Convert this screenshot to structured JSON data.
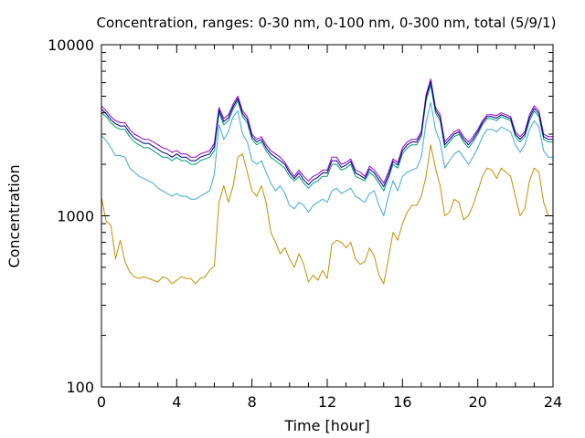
{
  "chart_data": {
    "type": "line",
    "title": "Concentration, ranges: 0-30 nm, 0-100 nm, 0-300 nm, total (5/9/1)",
    "xlabel": "Time [hour]",
    "ylabel": "Concentration",
    "xlim": [
      0,
      24
    ],
    "ylim": [
      100,
      10000
    ],
    "yscale": "log",
    "grid": false,
    "legend": "none",
    "x_ticks": [
      {
        "value": 0,
        "label": "0"
      },
      {
        "value": 4,
        "label": "4"
      },
      {
        "value": 8,
        "label": "8"
      },
      {
        "value": 12,
        "label": "12"
      },
      {
        "value": 16,
        "label": "16"
      },
      {
        "value": 20,
        "label": "20"
      },
      {
        "value": 24,
        "label": "24"
      }
    ],
    "y_ticks": [
      {
        "value": 100,
        "label": "100"
      },
      {
        "value": 1000,
        "label": "1000"
      },
      {
        "value": 10000,
        "label": "10000"
      }
    ],
    "x": [
      0,
      0.25,
      0.5,
      0.75,
      1,
      1.25,
      1.5,
      1.75,
      2,
      2.25,
      2.5,
      2.75,
      3,
      3.25,
      3.5,
      3.75,
      4,
      4.25,
      4.5,
      4.75,
      5,
      5.25,
      5.5,
      5.75,
      6,
      6.25,
      6.5,
      6.75,
      7,
      7.25,
      7.5,
      7.75,
      8,
      8.25,
      8.5,
      8.75,
      9,
      9.25,
      9.5,
      9.75,
      10,
      10.25,
      10.5,
      10.75,
      11,
      11.25,
      11.5,
      11.75,
      12,
      12.25,
      12.5,
      12.75,
      13,
      13.25,
      13.5,
      13.75,
      14,
      14.25,
      14.5,
      14.75,
      15,
      15.25,
      15.5,
      15.75,
      16,
      16.25,
      16.5,
      16.75,
      17,
      17.25,
      17.5,
      17.75,
      18,
      18.25,
      18.5,
      18.75,
      19,
      19.25,
      19.5,
      19.75,
      20,
      20.25,
      20.5,
      20.75,
      21,
      21.25,
      21.5,
      21.75,
      22,
      22.25,
      22.5,
      22.75,
      23,
      23.25,
      23.5,
      23.75,
      24
    ],
    "series": [
      {
        "color": "#c29000",
        "values": [
          1280,
          930,
          880,
          560,
          720,
          540,
          470,
          440,
          430,
          440,
          430,
          420,
          410,
          440,
          430,
          400,
          420,
          440,
          430,
          430,
          400,
          430,
          440,
          480,
          510,
          1200,
          1500,
          1200,
          1500,
          2200,
          2300,
          1800,
          1400,
          1300,
          1500,
          1200,
          800,
          700,
          600,
          650,
          560,
          500,
          600,
          520,
          410,
          450,
          420,
          480,
          430,
          680,
          720,
          700,
          650,
          700,
          560,
          520,
          540,
          650,
          580,
          450,
          400,
          560,
          800,
          720,
          900,
          1050,
          1150,
          1150,
          1300,
          1700,
          2600,
          1900,
          1500,
          1000,
          1050,
          1250,
          1200,
          950,
          1000,
          1150,
          1400,
          1700,
          1900,
          1850,
          1650,
          1900,
          1800,
          1700,
          1300,
          1000,
          1100,
          1600,
          1900,
          1800,
          1200,
          1000,
          1000
        ]
      },
      {
        "color": "#3fa9d4",
        "values": [
          2950,
          2750,
          2500,
          2250,
          2250,
          2200,
          1900,
          1800,
          1700,
          1650,
          1600,
          1550,
          1450,
          1400,
          1350,
          1300,
          1350,
          1300,
          1300,
          1250,
          1250,
          1300,
          1350,
          1400,
          1750,
          3400,
          2800,
          3100,
          3800,
          4100,
          3000,
          2700,
          2100,
          2000,
          2100,
          1800,
          1550,
          1400,
          1500,
          1350,
          1150,
          1100,
          1200,
          1150,
          1050,
          1150,
          1200,
          1250,
          1200,
          1400,
          1450,
          1350,
          1400,
          1450,
          1300,
          1250,
          1200,
          1350,
          1400,
          1150,
          1000,
          1300,
          1600,
          1400,
          1700,
          1800,
          1850,
          1900,
          2200,
          3500,
          4600,
          3200,
          2700,
          1900,
          2100,
          2300,
          2400,
          2200,
          2000,
          2200,
          2500,
          2900,
          3200,
          3200,
          3100,
          3300,
          3200,
          3100,
          2600,
          2350,
          2600,
          3200,
          3600,
          3300,
          2400,
          2200,
          2200
        ]
      },
      {
        "color": "#009e73",
        "values": [
          4000,
          3800,
          3500,
          3300,
          3200,
          3200,
          2900,
          2700,
          2600,
          2500,
          2500,
          2400,
          2300,
          2200,
          2200,
          2100,
          2200,
          2100,
          2100,
          2000,
          2000,
          2100,
          2150,
          2200,
          2400,
          4000,
          3400,
          3600,
          4200,
          4700,
          3800,
          3500,
          2800,
          2600,
          2700,
          2400,
          2200,
          2100,
          2000,
          1900,
          1700,
          1600,
          1700,
          1550,
          1450,
          1550,
          1600,
          1700,
          1700,
          2000,
          2000,
          1850,
          1900,
          2000,
          1700,
          1650,
          1600,
          1800,
          1700,
          1550,
          1400,
          1650,
          2000,
          1900,
          2300,
          2500,
          2600,
          2600,
          2900,
          4700,
          5800,
          4000,
          3600,
          2500,
          2700,
          2900,
          3000,
          2700,
          2500,
          2700,
          3000,
          3400,
          3700,
          3700,
          3600,
          3800,
          3700,
          3600,
          2900,
          2700,
          2900,
          3600,
          4100,
          3800,
          2800,
          2700,
          2700
        ]
      },
      {
        "color": "#9400d3",
        "values": [
          4400,
          4100,
          3800,
          3600,
          3500,
          3500,
          3200,
          3000,
          2900,
          2800,
          2800,
          2700,
          2600,
          2500,
          2450,
          2350,
          2400,
          2300,
          2300,
          2200,
          2200,
          2300,
          2350,
          2400,
          2650,
          4300,
          3700,
          3900,
          4500,
          5000,
          4100,
          3800,
          3000,
          2800,
          2900,
          2600,
          2400,
          2300,
          2200,
          2050,
          1850,
          1700,
          1850,
          1700,
          1600,
          1700,
          1750,
          1850,
          1850,
          2200,
          2200,
          2000,
          2050,
          2150,
          1850,
          1800,
          1700,
          1950,
          1850,
          1700,
          1550,
          1800,
          2150,
          2050,
          2500,
          2700,
          2800,
          2800,
          3100,
          5100,
          6300,
          4300,
          3900,
          2700,
          2900,
          3100,
          3200,
          2900,
          2700,
          2900,
          3200,
          3600,
          3900,
          3900,
          3850,
          4000,
          3900,
          3800,
          3100,
          2900,
          3100,
          3900,
          4400,
          4100,
          3000,
          2900,
          2900
        ]
      },
      {
        "color": "#000080",
        "values": [
          4200,
          3950,
          3650,
          3450,
          3350,
          3350,
          3050,
          2850,
          2750,
          2650,
          2650,
          2550,
          2450,
          2350,
          2300,
          2200,
          2300,
          2200,
          2200,
          2100,
          2100,
          2200,
          2250,
          2300,
          2550,
          4150,
          3550,
          3750,
          4350,
          4850,
          3950,
          3650,
          2900,
          2700,
          2800,
          2500,
          2300,
          2200,
          2100,
          2000,
          1780,
          1650,
          1780,
          1620,
          1520,
          1620,
          1680,
          1780,
          1780,
          2100,
          2100,
          1920,
          1980,
          2080,
          1780,
          1720,
          1650,
          1880,
          1780,
          1620,
          1480,
          1720,
          2080,
          1980,
          2400,
          2600,
          2700,
          2700,
          3000,
          4900,
          6100,
          4150,
          3750,
          2600,
          2800,
          3000,
          3100,
          2800,
          2600,
          2800,
          3100,
          3500,
          3800,
          3800,
          3720,
          3900,
          3800,
          3700,
          3000,
          2800,
          3000,
          3750,
          4250,
          3950,
          2900,
          2800,
          2800
        ]
      }
    ]
  }
}
